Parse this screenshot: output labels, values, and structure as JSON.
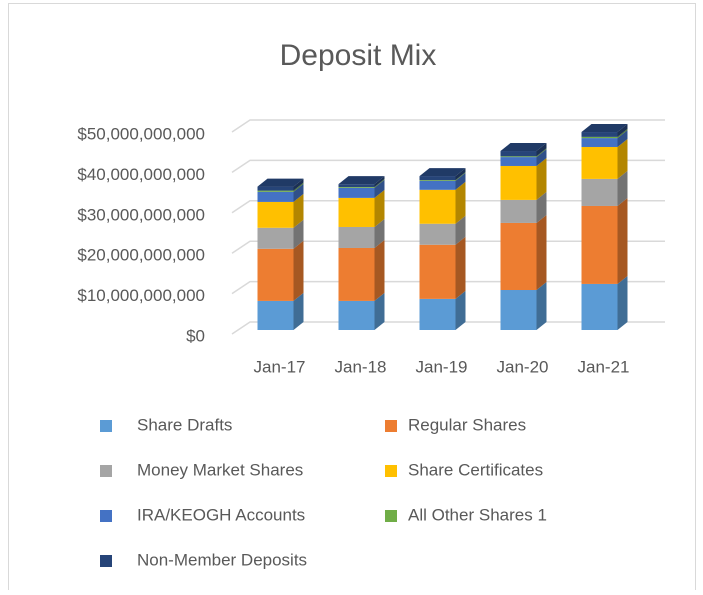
{
  "chart_data": {
    "type": "bar3d_stacked",
    "title": "Deposit Mix",
    "categories": [
      "Jan-17",
      "Jan-18",
      "Jan-19",
      "Jan-20",
      "Jan-21"
    ],
    "series": [
      {
        "name": "Share Drafts",
        "color": "#5b9bd5",
        "values": [
          7200000000,
          7200000000,
          7700000000,
          9900000000,
          11400000000
        ]
      },
      {
        "name": "Regular Shares",
        "color": "#ed7d31",
        "values": [
          12900000000,
          13100000000,
          13400000000,
          16600000000,
          19300000000
        ]
      },
      {
        "name": "Money Market Shares",
        "color": "#a5a5a5",
        "values": [
          5200000000,
          5200000000,
          5200000000,
          5700000000,
          6700000000
        ]
      },
      {
        "name": "Share Certificates",
        "color": "#ffc000",
        "values": [
          6400000000,
          7200000000,
          8400000000,
          8400000000,
          7900000000
        ]
      },
      {
        "name": "IRA/KEOGH Accounts",
        "color": "#4472c4",
        "values": [
          2500000000,
          2500000000,
          2200000000,
          2200000000,
          2200000000
        ]
      },
      {
        "name": "All Other Shares 1",
        "color": "#70ad47",
        "values": [
          300000000,
          200000000,
          200000000,
          200000000,
          300000000
        ]
      },
      {
        "name": "Non-Member Deposits",
        "color": "#264478",
        "values": [
          1000000000,
          700000000,
          1000000000,
          1300000000,
          1200000000
        ]
      }
    ],
    "ylim": [
      0,
      50000000000
    ],
    "yticks": [
      {
        "value": 0,
        "label": "$0"
      },
      {
        "value": 10000000000,
        "label": "$10,000,000,000"
      },
      {
        "value": 20000000000,
        "label": "$20,000,000,000"
      },
      {
        "value": 30000000000,
        "label": "$30,000,000,000"
      },
      {
        "value": 40000000000,
        "label": "$40,000,000,000"
      },
      {
        "value": 50000000000,
        "label": "$50,000,000,000"
      }
    ],
    "grid": true,
    "legend_position": "bottom"
  }
}
